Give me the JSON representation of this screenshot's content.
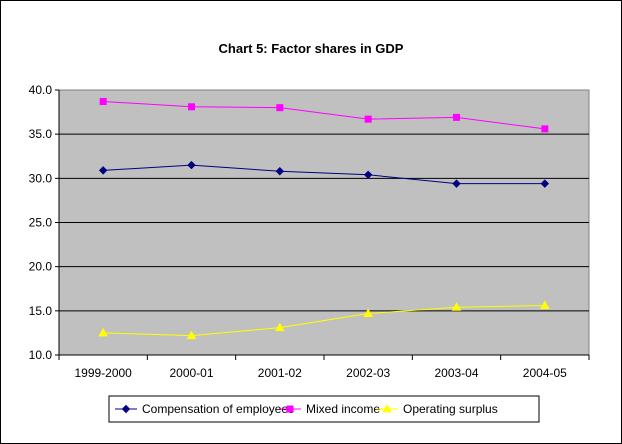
{
  "chart_data": {
    "type": "line",
    "title": "Chart 5: Factor shares in GDP",
    "categories": [
      "1999-2000",
      "2000-01",
      "2001-02",
      "2002-03",
      "2003-04",
      "2004-05"
    ],
    "ylim": [
      10.0,
      40.0
    ],
    "yticks": [
      "10.0",
      "15.0",
      "20.0",
      "25.0",
      "30.0",
      "35.0",
      "40.0"
    ],
    "grid": "horizontal",
    "plot_background": "#c0c0c0",
    "legend_position": "bottom",
    "series": [
      {
        "name": "Compensation of employees",
        "color": "#000080",
        "marker": "diamond",
        "values": [
          30.9,
          31.5,
          30.8,
          30.4,
          29.4,
          29.4
        ]
      },
      {
        "name": "Mixed income",
        "color": "#ff00ff",
        "marker": "square",
        "values": [
          38.7,
          38.1,
          38.0,
          36.7,
          36.9,
          35.6
        ]
      },
      {
        "name": "Operating surplus",
        "color": "#ffff00",
        "marker": "triangle",
        "values": [
          12.5,
          12.2,
          13.1,
          14.7,
          15.4,
          15.6
        ]
      }
    ]
  }
}
